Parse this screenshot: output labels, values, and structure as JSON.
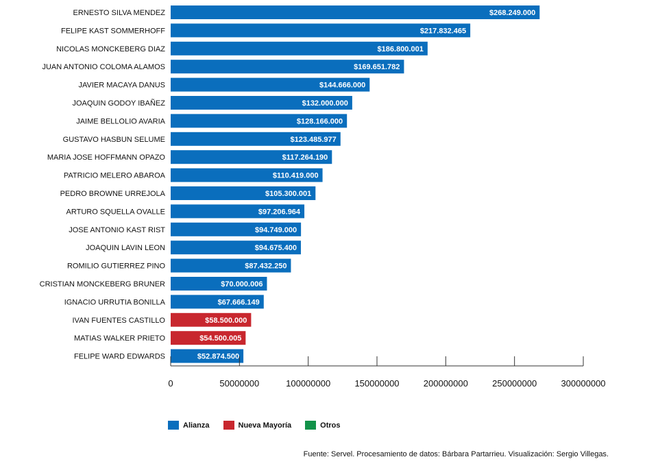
{
  "chart_data": {
    "type": "bar",
    "orientation": "horizontal",
    "categories": [
      "ERNESTO SILVA MENDEZ",
      "FELIPE KAST SOMMERHOFF",
      "NICOLAS MONCKEBERG DIAZ",
      "JUAN ANTONIO COLOMA ALAMOS",
      "JAVIER MACAYA DANUS",
      "JOAQUIN GODOY IBAÑEZ",
      "JAIME BELLOLIO AVARIA",
      "GUSTAVO HASBUN SELUME",
      "MARIA JOSE HOFFMANN OPAZO",
      "PATRICIO MELERO ABAROA",
      "PEDRO BROWNE URREJOLA",
      "ARTURO SQUELLA OVALLE",
      "JOSE ANTONIO KAST RIST",
      "JOAQUIN LAVIN LEON",
      "ROMILIO GUTIERREZ PINO",
      "CRISTIAN MONCKEBERG BRUNER",
      "IGNACIO URRUTIA BONILLA",
      "IVAN FUENTES CASTILLO",
      "MATIAS WALKER PRIETO",
      "FELIPE WARD EDWARDS"
    ],
    "values": [
      268249000,
      217832465,
      186800001,
      169651782,
      144666000,
      132000000,
      128166000,
      123485977,
      117264190,
      110419000,
      105300001,
      97206964,
      94749000,
      94675400,
      87432250,
      70000006,
      67666149,
      58500000,
      54500005,
      52874500
    ],
    "value_labels": [
      "$268.249.000",
      "$217.832.465",
      "$186.800.001",
      "$169.651.782",
      "$144.666.000",
      "$132.000.000",
      "$128.166.000",
      "$123.485.977",
      "$117.264.190",
      "$110.419.000",
      "$105.300.001",
      "$97.206.964",
      "$94.749.000",
      "$94.675.400",
      "$87.432.250",
      "$70.000.006",
      "$67.666.149",
      "$58.500.000",
      "$54.500.005",
      "$52.874.500"
    ],
    "groups": [
      "Alianza",
      "Alianza",
      "Alianza",
      "Alianza",
      "Alianza",
      "Alianza",
      "Alianza",
      "Alianza",
      "Alianza",
      "Alianza",
      "Alianza",
      "Alianza",
      "Alianza",
      "Alianza",
      "Alianza",
      "Alianza",
      "Alianza",
      "Nueva Mayoría",
      "Nueva Mayoría",
      "Alianza"
    ],
    "xlim": [
      0,
      300000000
    ],
    "x_ticks": [
      0,
      50000000,
      100000000,
      150000000,
      200000000,
      250000000,
      300000000
    ],
    "x_tick_labels": [
      "0",
      "50000000",
      "100000000",
      "150000000",
      "200000000",
      "250000000",
      "300000000"
    ],
    "grid": false,
    "legend": {
      "placement": "bottom-left",
      "entries": [
        {
          "name": "Alianza",
          "color": "#0a6ebd"
        },
        {
          "name": "Nueva Mayoría",
          "color": "#c8272e"
        },
        {
          "name": "Otros",
          "color": "#12924a"
        }
      ]
    }
  },
  "source_note": "Fuente: Servel. Procesamiento de datos: Bárbara Partarrieu. Visualización: Sergio Villegas."
}
